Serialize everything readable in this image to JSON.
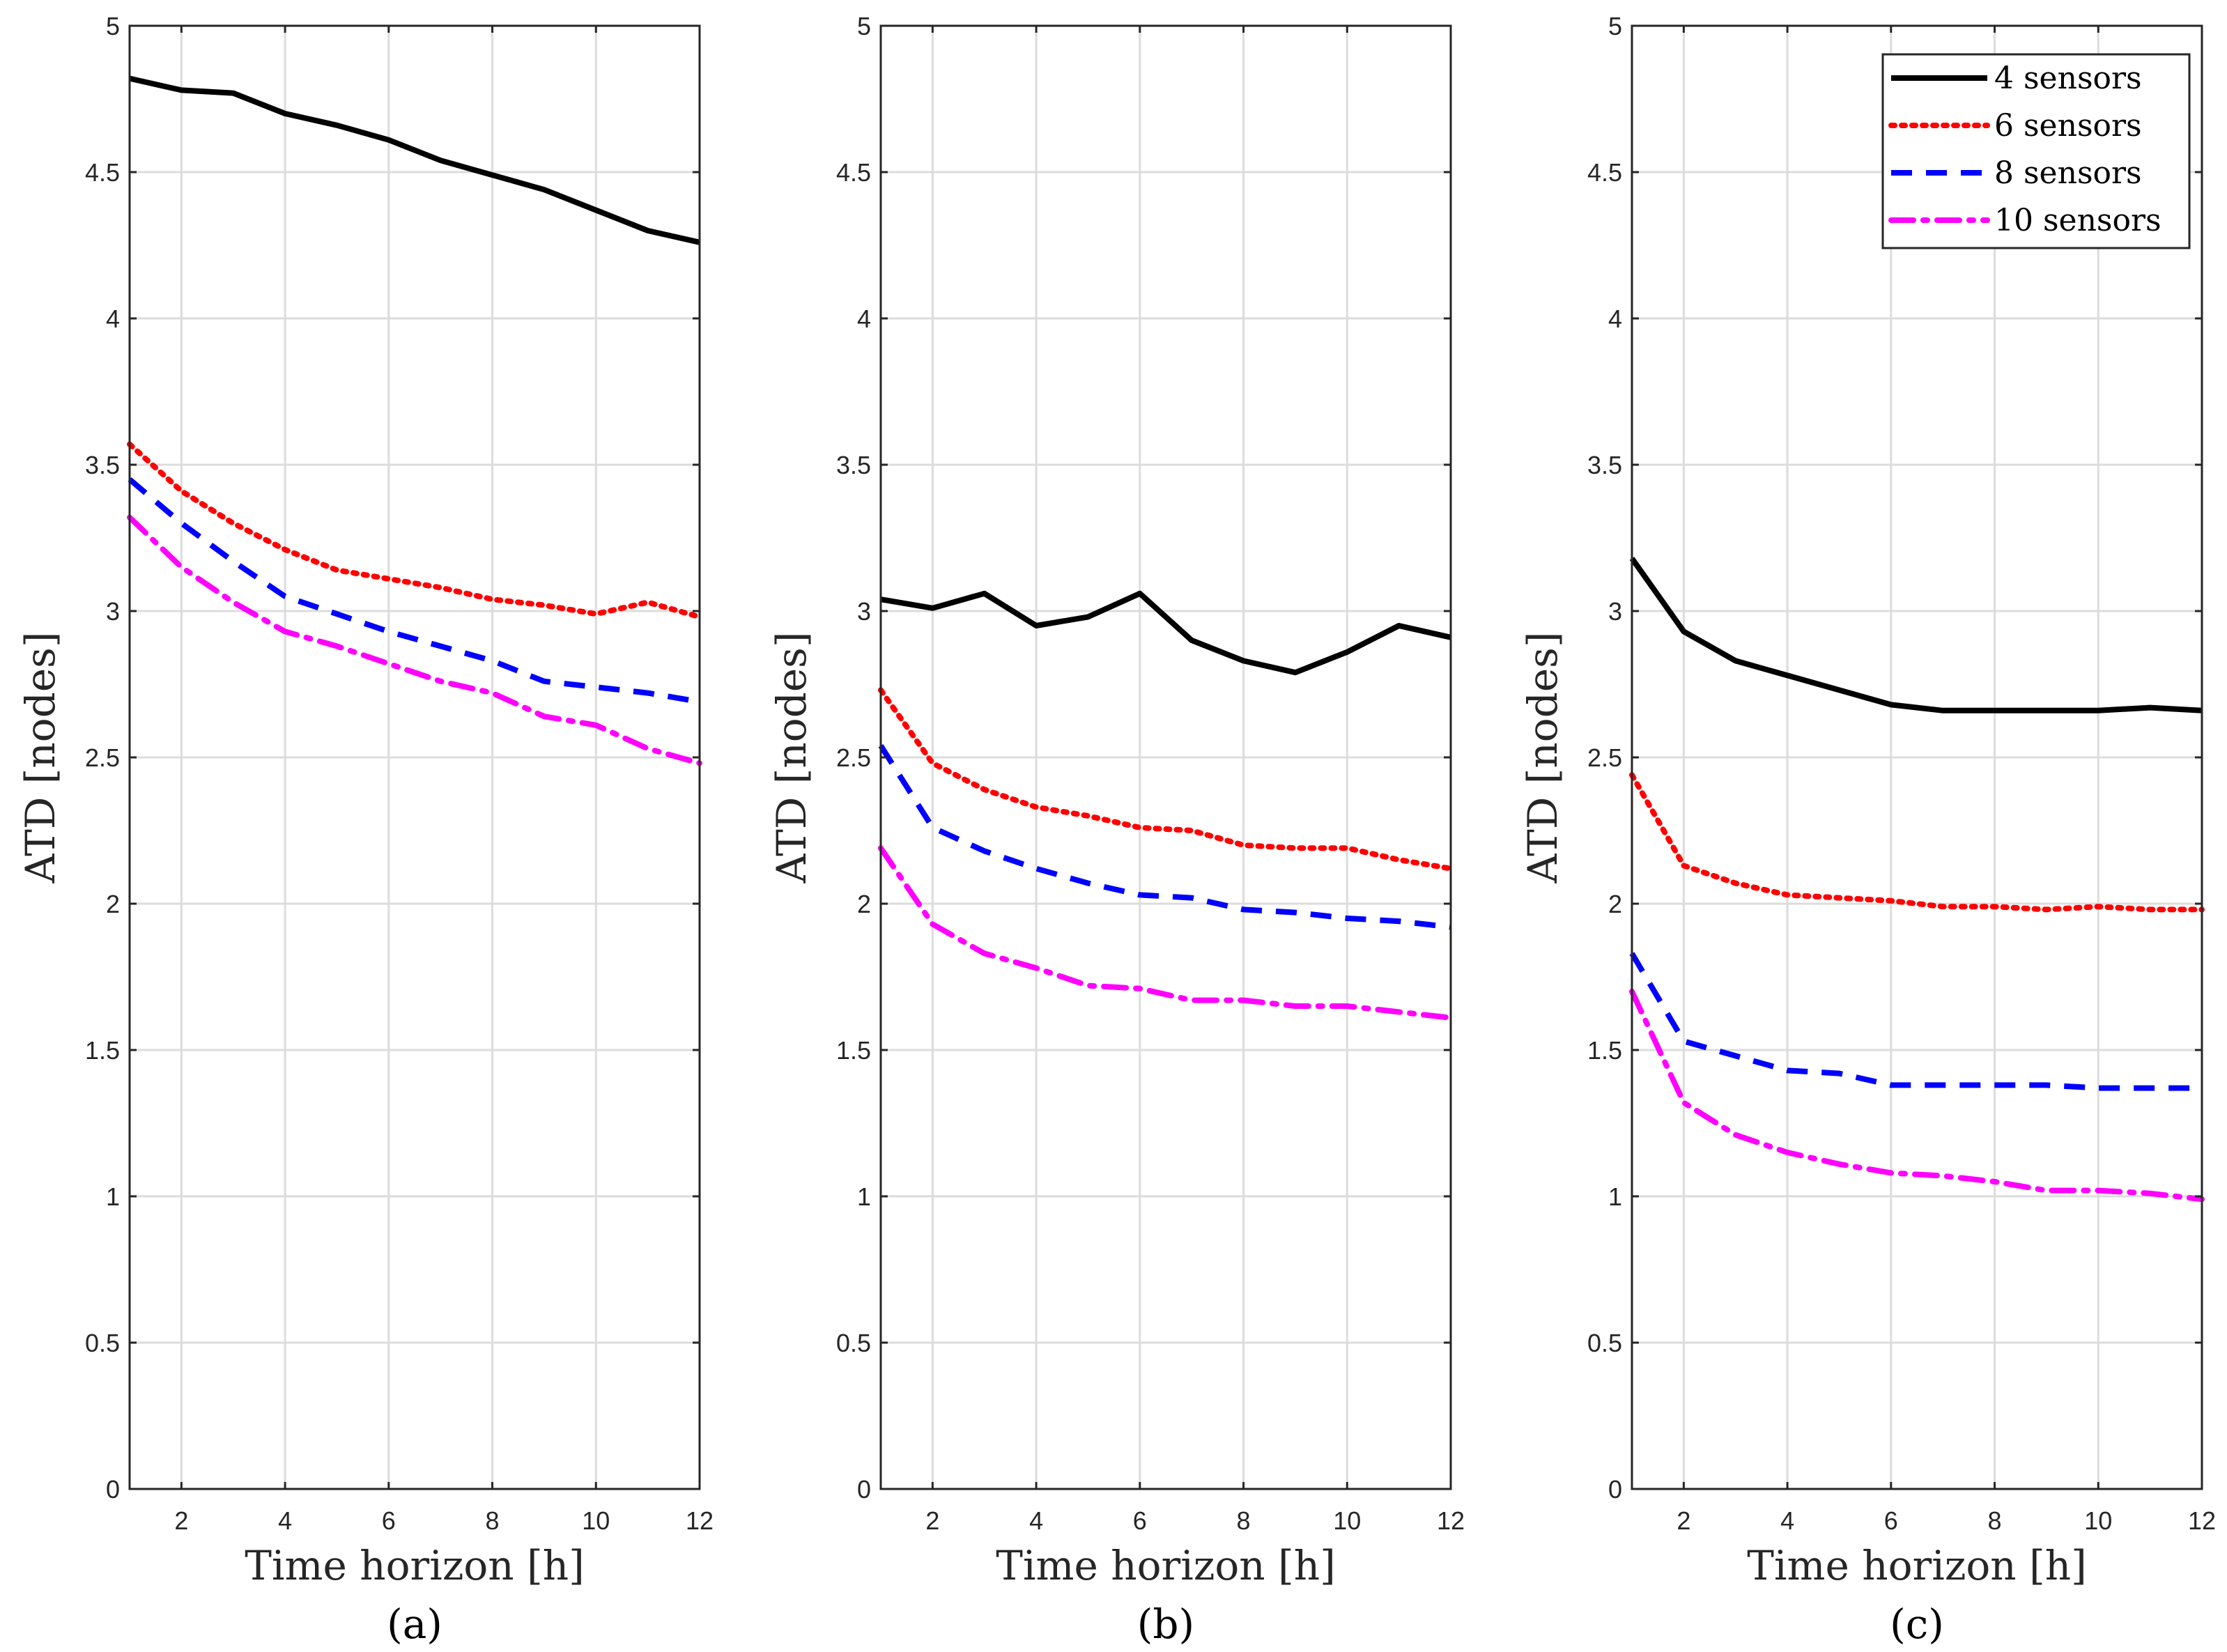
{
  "chart_data": [
    {
      "type": "line",
      "caption": "(a)",
      "xlabel": "Time horizon [h]",
      "ylabel": "ATD [nodes]",
      "xlim": [
        1,
        12
      ],
      "ylim": [
        0,
        5
      ],
      "xticks": [
        "2",
        "4",
        "6",
        "8",
        "10",
        "12"
      ],
      "yticks": [
        "0",
        "0.5",
        "1",
        "1.5",
        "2",
        "2.5",
        "3",
        "3.5",
        "4",
        "4.5",
        "5"
      ],
      "grid": true,
      "x": [
        1,
        2,
        3,
        4,
        5,
        6,
        7,
        8,
        9,
        10,
        11,
        12
      ],
      "series": [
        {
          "name": "4 sensors",
          "values": [
            4.82,
            4.78,
            4.77,
            4.7,
            4.66,
            4.61,
            4.54,
            4.49,
            4.44,
            4.37,
            4.3,
            4.26
          ]
        },
        {
          "name": "6 sensors",
          "values": [
            3.57,
            3.41,
            3.3,
            3.21,
            3.14,
            3.11,
            3.08,
            3.04,
            3.02,
            2.99,
            3.03,
            2.98
          ]
        },
        {
          "name": "8 sensors",
          "values": [
            3.45,
            3.3,
            3.17,
            3.05,
            2.99,
            2.93,
            2.88,
            2.83,
            2.76,
            2.74,
            2.72,
            2.69
          ]
        },
        {
          "name": "10 sensors",
          "values": [
            3.32,
            3.15,
            3.03,
            2.93,
            2.88,
            2.82,
            2.76,
            2.72,
            2.64,
            2.61,
            2.53,
            2.48
          ]
        }
      ]
    },
    {
      "type": "line",
      "caption": "(b)",
      "xlabel": "Time horizon [h]",
      "ylabel": "ATD [nodes]",
      "xlim": [
        1,
        12
      ],
      "ylim": [
        0,
        5
      ],
      "xticks": [
        "2",
        "4",
        "6",
        "8",
        "10",
        "12"
      ],
      "yticks": [
        "0",
        "0.5",
        "1",
        "1.5",
        "2",
        "2.5",
        "3",
        "3.5",
        "4",
        "4.5",
        "5"
      ],
      "grid": true,
      "x": [
        1,
        2,
        3,
        4,
        5,
        6,
        7,
        8,
        9,
        10,
        11,
        12
      ],
      "series": [
        {
          "name": "4 sensors",
          "values": [
            3.04,
            3.01,
            3.06,
            2.95,
            2.98,
            3.06,
            2.9,
            2.83,
            2.79,
            2.86,
            2.95,
            2.91
          ]
        },
        {
          "name": "6 sensors",
          "values": [
            2.73,
            2.48,
            2.39,
            2.33,
            2.3,
            2.26,
            2.25,
            2.2,
            2.19,
            2.19,
            2.15,
            2.12
          ]
        },
        {
          "name": "8 sensors",
          "values": [
            2.54,
            2.26,
            2.18,
            2.12,
            2.07,
            2.03,
            2.02,
            1.98,
            1.97,
            1.95,
            1.94,
            1.92
          ]
        },
        {
          "name": "10 sensors",
          "values": [
            2.19,
            1.93,
            1.83,
            1.78,
            1.72,
            1.71,
            1.67,
            1.67,
            1.65,
            1.65,
            1.63,
            1.61
          ]
        }
      ]
    },
    {
      "type": "line",
      "caption": "(c)",
      "xlabel": "Time horizon [h]",
      "ylabel": "ATD [nodes]",
      "xlim": [
        1,
        12
      ],
      "ylim": [
        0,
        5
      ],
      "xticks": [
        "2",
        "4",
        "6",
        "8",
        "10",
        "12"
      ],
      "yticks": [
        "0",
        "0.5",
        "1",
        "1.5",
        "2",
        "2.5",
        "3",
        "3.5",
        "4",
        "4.5",
        "5"
      ],
      "grid": true,
      "legend": "top-right",
      "x": [
        1,
        2,
        3,
        4,
        5,
        6,
        7,
        8,
        9,
        10,
        11,
        12
      ],
      "series": [
        {
          "name": "4 sensors",
          "values": [
            3.18,
            2.93,
            2.83,
            2.78,
            2.73,
            2.68,
            2.66,
            2.66,
            2.66,
            2.66,
            2.67,
            2.66
          ]
        },
        {
          "name": "6 sensors",
          "values": [
            2.44,
            2.13,
            2.07,
            2.03,
            2.02,
            2.01,
            1.99,
            1.99,
            1.98,
            1.99,
            1.98,
            1.98
          ]
        },
        {
          "name": "8 sensors",
          "values": [
            1.83,
            1.53,
            1.48,
            1.43,
            1.42,
            1.38,
            1.38,
            1.38,
            1.38,
            1.37,
            1.37,
            1.37
          ]
        },
        {
          "name": "10 sensors",
          "values": [
            1.7,
            1.32,
            1.21,
            1.15,
            1.11,
            1.08,
            1.07,
            1.05,
            1.02,
            1.02,
            1.01,
            0.99
          ]
        }
      ]
    }
  ],
  "series_styles": [
    {
      "name": "4 sensors",
      "color": "#000000",
      "dash": "solid"
    },
    {
      "name": "6 sensors",
      "color": "#ff0000",
      "dash": "dotted"
    },
    {
      "name": "8 sensors",
      "color": "#0000ff",
      "dash": "dashed"
    },
    {
      "name": "10 sensors",
      "color": "#ff00ff",
      "dash": "dashdot"
    }
  ]
}
